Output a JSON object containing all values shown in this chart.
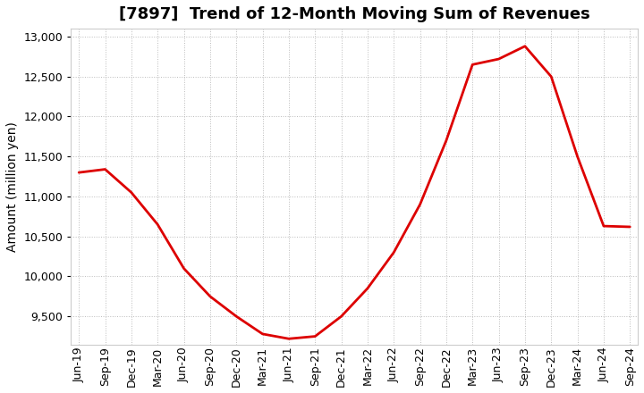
{
  "title": "[7897]  Trend of 12-Month Moving Sum of Revenues",
  "ylabel": "Amount (million yen)",
  "line_color": "#dd0000",
  "background_color": "#ffffff",
  "plot_bg_color": "#ffffff",
  "grid_color": "#aaaaaa",
  "ylim": [
    9150,
    13100
  ],
  "yticks": [
    9500,
    10000,
    10500,
    11000,
    11500,
    12000,
    12500,
    13000
  ],
  "values": [
    11300,
    11340,
    11050,
    10650,
    10100,
    9750,
    9500,
    9280,
    9220,
    9250,
    9500,
    9850,
    10300,
    10900,
    11700,
    12650,
    12720,
    12880,
    12500,
    11500,
    10630,
    10620
  ],
  "xtick_labels": [
    "Jun-19",
    "Sep-19",
    "Dec-19",
    "Mar-20",
    "Jun-20",
    "Sep-20",
    "Dec-20",
    "Mar-21",
    "Jun-21",
    "Sep-21",
    "Dec-21",
    "Mar-22",
    "Jun-22",
    "Sep-22",
    "Dec-22",
    "Mar-23",
    "Jun-23",
    "Sep-23",
    "Dec-23",
    "Mar-24",
    "Jun-24",
    "Sep-24"
  ],
  "title_fontsize": 13,
  "label_fontsize": 10,
  "tick_fontsize": 9
}
